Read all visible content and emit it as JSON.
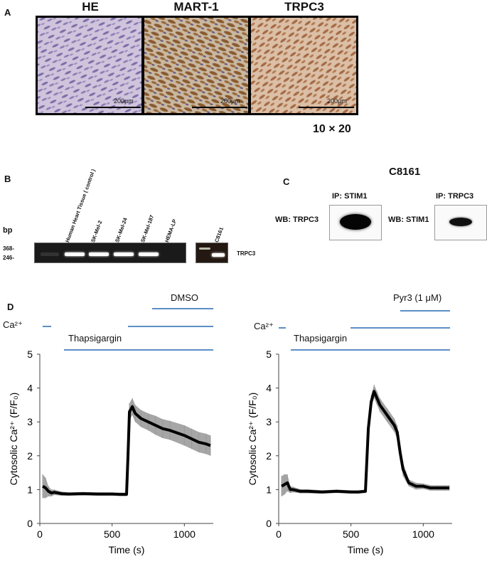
{
  "panels": {
    "a": {
      "letter": "A",
      "tiles": [
        {
          "title": "HE",
          "scale": "200μm"
        },
        {
          "title": "MART-1",
          "scale": "200μm"
        },
        {
          "title": "TRPC3",
          "scale": "200μm"
        }
      ],
      "magnification": "10 × 20"
    },
    "b": {
      "letter": "B",
      "bp_label": "bp",
      "markers": [
        "368-",
        "246-"
      ],
      "lanes": [
        "Human Heart Tissue ( control )",
        "SK-Mel-2",
        "SK-Mel-24",
        "SK-Mel-187",
        "HEMA-LP"
      ],
      "c8161_lane": "C8161",
      "band_label": "TRPC3"
    },
    "c": {
      "letter": "C",
      "title": "C8161",
      "blots": [
        {
          "ip": "IP: STIM1",
          "wb": "WB: TRPC3"
        },
        {
          "ip": "IP: TRPC3",
          "wb": "WB: STIM1"
        }
      ]
    },
    "d": {
      "letter": "D",
      "ca_label": "Ca²⁺",
      "thapsigargin": "Thapsigargin",
      "left_treatment": "DMSO",
      "right_treatment": "Pyr3 (1 μM)"
    }
  },
  "chart_data": [
    {
      "type": "line",
      "title": "",
      "xlabel": "Time (s)",
      "ylabel": "Cytosolic Ca²⁺ (F/F₀)",
      "xlim": [
        0,
        1200
      ],
      "ylim": [
        0,
        5
      ],
      "xticks": [
        0,
        500,
        1000
      ],
      "yticks": [
        0,
        1,
        2,
        3,
        4,
        5
      ],
      "series": [
        {
          "x": [
            20,
            40,
            60,
            80,
            100,
            150,
            200,
            300,
            400,
            500,
            550,
            600,
            610,
            620,
            640,
            660,
            700,
            750,
            800,
            850,
            900,
            1000,
            1050,
            1100,
            1150,
            1180
          ],
          "y": [
            1.1,
            1.05,
            0.95,
            0.9,
            0.92,
            0.88,
            0.87,
            0.88,
            0.87,
            0.87,
            0.86,
            0.86,
            2.0,
            3.3,
            3.45,
            3.25,
            3.1,
            3.0,
            2.9,
            2.8,
            2.75,
            2.6,
            2.5,
            2.4,
            2.35,
            2.3
          ],
          "error": [
            0.35,
            0.3,
            0.15,
            0.1,
            0.08,
            0.06,
            0.05,
            0.05,
            0.05,
            0.05,
            0.05,
            0.05,
            0.2,
            0.25,
            0.25,
            0.25,
            0.25,
            0.25,
            0.28,
            0.28,
            0.28,
            0.3,
            0.3,
            0.3,
            0.3,
            0.3
          ]
        }
      ],
      "annotations": {
        "calcium": [
          [
            0,
            100
          ],
          [
            600,
            1180
          ]
        ],
        "thapsigargin": [
          100,
          1180
        ],
        "treatment": [
          780,
          1180
        ]
      }
    },
    {
      "type": "line",
      "title": "",
      "xlabel": "Time (s)",
      "ylabel": "Cytosolic Ca²⁺ (F/F₀)",
      "xlim": [
        0,
        1200
      ],
      "ylim": [
        0,
        5
      ],
      "xticks": [
        0,
        500,
        1000
      ],
      "yticks": [
        0,
        1,
        2,
        3,
        4,
        5
      ],
      "series": [
        {
          "x": [
            20,
            40,
            60,
            80,
            100,
            150,
            200,
            300,
            400,
            500,
            550,
            600,
            620,
            640,
            660,
            680,
            700,
            750,
            800,
            820,
            840,
            860,
            880,
            900,
            950,
            1000,
            1050,
            1100,
            1150,
            1180
          ],
          "y": [
            1.1,
            1.15,
            1.2,
            1.0,
            1.0,
            0.95,
            0.95,
            0.93,
            0.95,
            0.93,
            0.93,
            0.95,
            2.8,
            3.6,
            3.9,
            3.7,
            3.5,
            3.2,
            2.9,
            2.7,
            2.1,
            1.6,
            1.4,
            1.2,
            1.1,
            1.1,
            1.05,
            1.05,
            1.05,
            1.05
          ],
          "error": [
            0.3,
            0.3,
            0.25,
            0.1,
            0.08,
            0.06,
            0.06,
            0.05,
            0.05,
            0.05,
            0.05,
            0.05,
            0.2,
            0.2,
            0.2,
            0.2,
            0.2,
            0.2,
            0.2,
            0.2,
            0.2,
            0.2,
            0.15,
            0.1,
            0.1,
            0.08,
            0.08,
            0.08,
            0.08,
            0.08
          ]
        }
      ],
      "annotations": {
        "calcium": [
          [
            0,
            70
          ],
          [
            490,
            1180
          ]
        ],
        "thapsigargin": [
          70,
          1180
        ],
        "treatment": [
          800,
          1180
        ]
      }
    }
  ],
  "colors": {
    "line": "#000000",
    "error": "#888888",
    "condition_line": "#5b8fc7"
  }
}
